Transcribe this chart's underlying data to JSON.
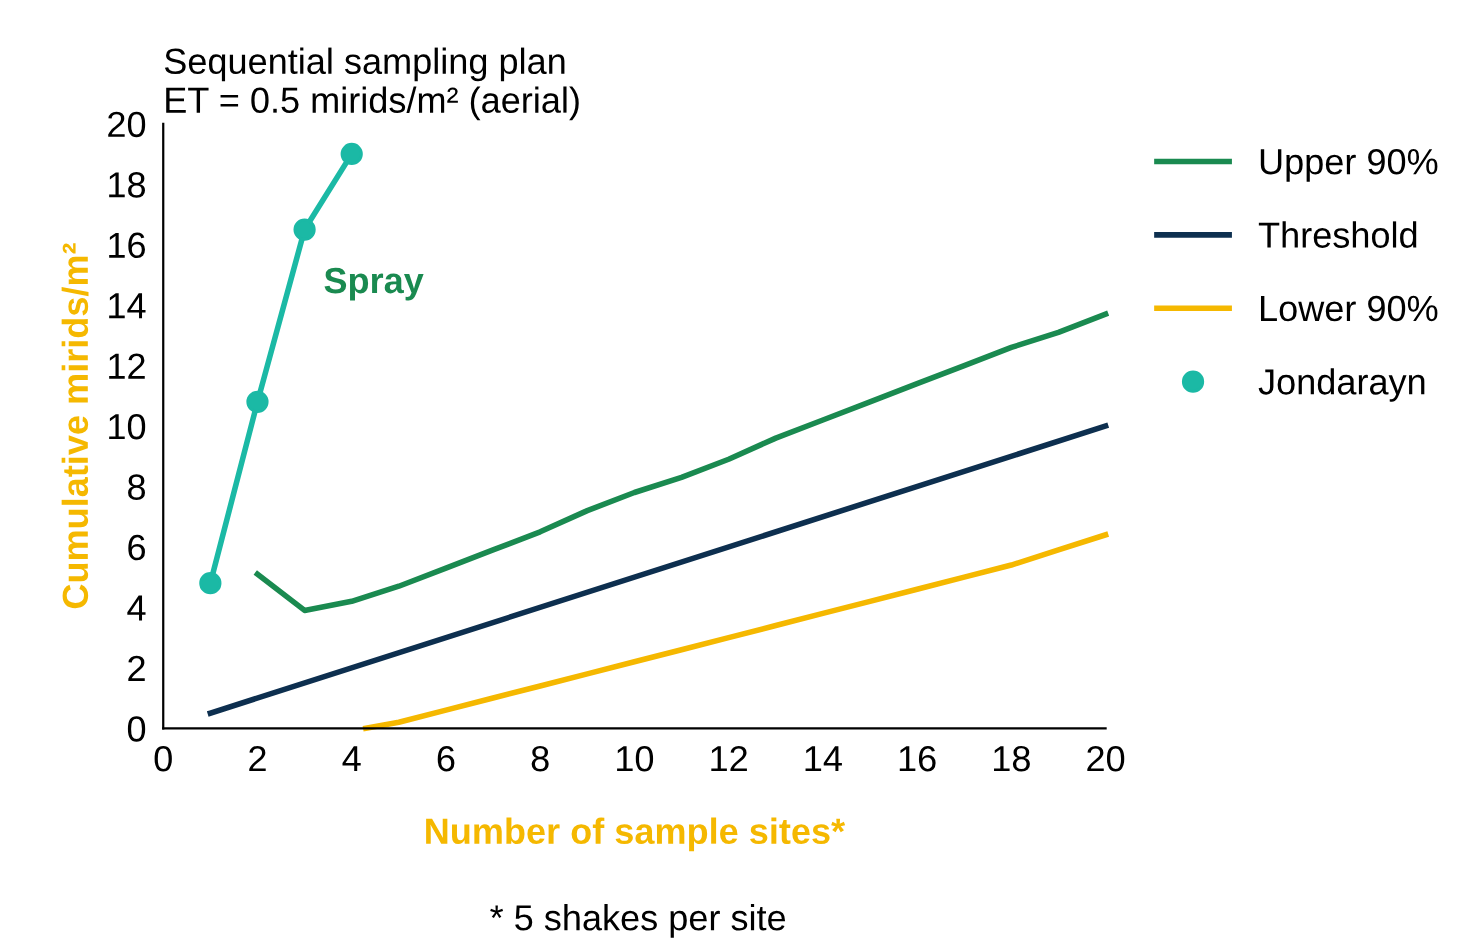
{
  "chart_data": {
    "type": "line",
    "title": "Sequential sampling plan\nET = 0.5 mirids/m² (aerial)",
    "xlabel": "Number of sample sites*",
    "ylabel": "Cumulative mirids/m²",
    "xlim": [
      0,
      20
    ],
    "ylim": [
      0,
      20
    ],
    "xticks": [
      0,
      2,
      4,
      6,
      8,
      10,
      12,
      14,
      16,
      18,
      20
    ],
    "yticks": [
      0,
      2,
      4,
      6,
      8,
      10,
      12,
      14,
      16,
      18,
      20
    ],
    "grid": false,
    "legend": "right",
    "series": [
      {
        "name": "Upper 90%",
        "color": "#1a8a50",
        "marker": "none",
        "x": [
          2,
          3,
          4,
          5,
          6,
          7,
          8,
          9,
          10,
          11,
          12,
          13,
          14,
          15,
          16,
          17,
          18,
          19,
          20
        ],
        "values": [
          5.1,
          3.9,
          4.2,
          4.7,
          5.3,
          5.9,
          6.5,
          7.2,
          7.8,
          8.3,
          8.9,
          9.6,
          10.2,
          10.8,
          11.4,
          12.0,
          12.6,
          13.1,
          13.7
        ]
      },
      {
        "name": "Threshold",
        "color": "#0d2f4f",
        "marker": "none",
        "x": [
          1,
          20
        ],
        "values": [
          0.5,
          10
        ]
      },
      {
        "name": "Lower 90%",
        "color": "#f5b800",
        "marker": "none",
        "x": [
          4.3,
          5,
          6,
          7,
          8,
          9,
          10,
          11,
          12,
          13,
          14,
          15,
          16,
          17,
          18,
          19,
          20
        ],
        "values": [
          0,
          0.2,
          0.6,
          1.0,
          1.4,
          1.8,
          2.2,
          2.6,
          3.0,
          3.4,
          3.8,
          4.2,
          4.6,
          5.0,
          5.4,
          5.9,
          6.4
        ]
      },
      {
        "name": "Jondarayn",
        "color": "#1bb9a5",
        "marker": "circle",
        "x": [
          1,
          2,
          3,
          4
        ],
        "values": [
          4.8,
          10.8,
          16.5,
          19
        ]
      }
    ],
    "annotations": [
      "Spray",
      "* 5 shakes per site"
    ]
  }
}
